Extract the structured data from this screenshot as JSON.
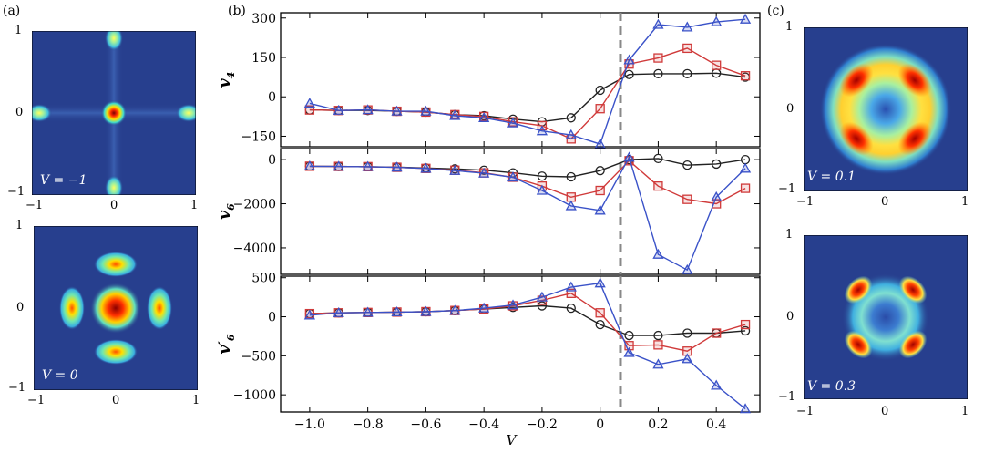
{
  "panel_labels": {
    "a": "(a)",
    "b": "(b)",
    "c": "(c)"
  },
  "maps": {
    "a_top": {
      "label": "V = −1",
      "ticks_x": [
        "−1",
        "0",
        "1"
      ],
      "ticks_y": [
        "1",
        "0",
        "−1"
      ]
    },
    "a_bottom": {
      "label": "V = 0",
      "ticks_x": [
        "−1",
        "0",
        "1"
      ],
      "ticks_y": [
        "1",
        "0",
        "−1"
      ]
    },
    "c_top": {
      "label": "V = 0.1",
      "ticks_x": [
        "−1",
        "0",
        "1"
      ],
      "ticks_y": [
        "1",
        "0",
        "−1"
      ]
    },
    "c_bottom": {
      "label": "V = 0.3",
      "ticks_x": [
        "−1",
        "0",
        "1"
      ],
      "ticks_y": [
        "1",
        "0",
        "−1"
      ]
    }
  },
  "colors": {
    "black": "#222222",
    "red": "#d03a3a",
    "blue": "#3a52c8",
    "dashed": "#888888",
    "map_bg": "#273f8e"
  },
  "chart_data": {
    "type": "line",
    "xlabel": "V",
    "xlim": [
      -1.1,
      0.55
    ],
    "x_ticks": [
      -1.0,
      -0.8,
      -0.6,
      -0.4,
      -0.2,
      0,
      0.2,
      0.4
    ],
    "x_tick_labels": [
      "−1.0",
      "−0.8",
      "−0.6",
      "−0.4",
      "−0.2",
      "0",
      "0.2",
      "0.4"
    ],
    "x": [
      -1.0,
      -0.9,
      -0.8,
      -0.7,
      -0.6,
      -0.5,
      -0.4,
      -0.3,
      -0.2,
      -0.1,
      0.0,
      0.1,
      0.2,
      0.3,
      0.4,
      0.5
    ],
    "vline_x": 0.07,
    "subplots": [
      {
        "ylabel": "v4",
        "ylabel_main": "v",
        "ylabel_sub": "4",
        "ylim": [
          -190,
          320
        ],
        "y_ticks": [
          300,
          150,
          0,
          -150
        ],
        "y_tick_labels": [
          "300",
          "150",
          "0",
          "−150"
        ],
        "series": [
          {
            "name": "black",
            "marker": "circle",
            "values": [
              -50,
              -52,
              -52,
              -55,
              -58,
              -68,
              -72,
              -85,
              -95,
              -80,
              25,
              85,
              88,
              88,
              90,
              75
            ]
          },
          {
            "name": "red",
            "marker": "square",
            "values": [
              -50,
              -52,
              -50,
              -55,
              -58,
              -68,
              -75,
              -95,
              -110,
              -160,
              -45,
              125,
              148,
              185,
              120,
              80
            ]
          },
          {
            "name": "blue",
            "marker": "triangle",
            "values": [
              -25,
              -52,
              -50,
              -55,
              -55,
              -72,
              -80,
              -100,
              -130,
              -145,
              -180,
              140,
              275,
              265,
              285,
              295
            ]
          }
        ]
      },
      {
        "ylabel": "v6",
        "ylabel_main": "v",
        "ylabel_sub": "6",
        "ylim": [
          -5200,
          500
        ],
        "y_ticks": [
          0,
          -2000,
          -4000
        ],
        "y_tick_labels": [
          "0",
          "−2000",
          "−4000"
        ],
        "series": [
          {
            "name": "black",
            "marker": "circle",
            "values": [
              -300,
              -310,
              -320,
              -340,
              -380,
              -420,
              -480,
              -600,
              -750,
              -780,
              -500,
              0,
              50,
              -250,
              -200,
              0
            ]
          },
          {
            "name": "red",
            "marker": "square",
            "values": [
              -300,
              -310,
              -320,
              -350,
              -400,
              -480,
              -600,
              -800,
              -1200,
              -1700,
              -1400,
              -50,
              -1200,
              -1800,
              -2000,
              -1300
            ]
          },
          {
            "name": "blue",
            "marker": "triangle",
            "values": [
              -300,
              -310,
              -320,
              -350,
              -400,
              -500,
              -620,
              -800,
              -1400,
              -2100,
              -2300,
              100,
              -4300,
              -5000,
              -1700,
              -400
            ]
          }
        ]
      },
      {
        "ylabel": "v6'",
        "ylabel_main": "v",
        "ylabel_sub": "6",
        "ylabel_prime": "′",
        "ylim": [
          -1220,
          520
        ],
        "y_ticks": [
          500,
          0,
          -500,
          -1000
        ],
        "y_tick_labels": [
          "500",
          "0",
          "−500",
          "−1000"
        ],
        "series": [
          {
            "name": "black",
            "marker": "circle",
            "values": [
              40,
              50,
              55,
              60,
              65,
              80,
              100,
              120,
              140,
              110,
              -100,
              -240,
              -240,
              -210,
              -210,
              -180
            ]
          },
          {
            "name": "red",
            "marker": "square",
            "values": [
              40,
              50,
              55,
              60,
              65,
              80,
              100,
              140,
              210,
              300,
              50,
              -370,
              -360,
              -440,
              -210,
              -100
            ]
          },
          {
            "name": "blue",
            "marker": "triangle",
            "values": [
              20,
              50,
              55,
              60,
              65,
              80,
              110,
              150,
              250,
              380,
              430,
              -460,
              -610,
              -540,
              -880,
              -1180
            ]
          }
        ]
      }
    ]
  }
}
